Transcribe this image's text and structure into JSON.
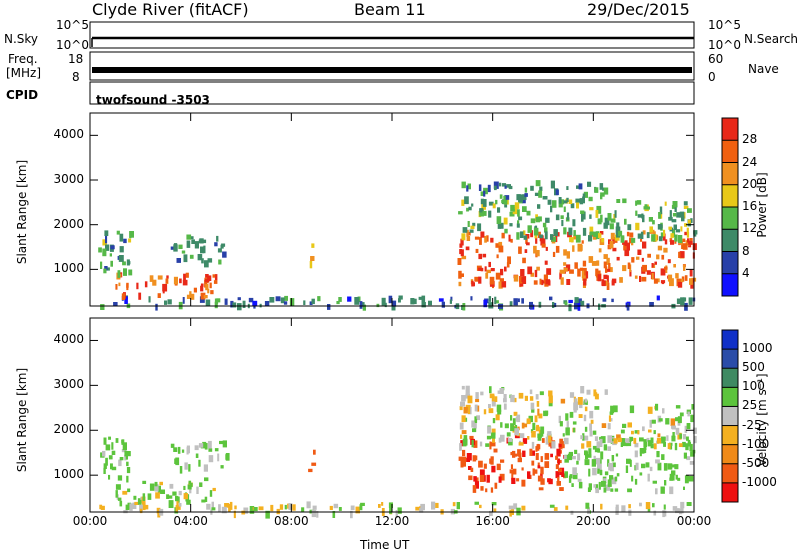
{
  "header": {
    "station": "Clyde River (fitACF)",
    "beam": "Beam 11",
    "date": "29/Dec/2015"
  },
  "noise_panel": {
    "left_label": "N.Sky",
    "right_label": "N.Search",
    "left_ticks": [
      "10^5",
      "10^0"
    ],
    "right_ticks": [
      "10^5",
      "10^0"
    ]
  },
  "freq_panel": {
    "left_label_1": "Freq.",
    "left_label_2": "[MHz]",
    "right_label": "Nave",
    "left_ticks": [
      "18",
      "8"
    ],
    "right_ticks": [
      "60",
      "0"
    ]
  },
  "cpid_panel": {
    "label": "CPID",
    "program": "twofsound -3503"
  },
  "colors": {
    "power": [
      "#1010ff",
      "#2840a8",
      "#3e8a68",
      "#56b848",
      "#e8c818",
      "#f09020",
      "#f06010",
      "#e82818"
    ],
    "velocity": [
      "#ee1010",
      "#f05a14",
      "#f08a18",
      "#f4b020",
      "#c0c0c0",
      "#5cc43c",
      "#3f8a62",
      "#2a4ca8",
      "#1030c8"
    ]
  },
  "chart_data": [
    {
      "type": "heatmap",
      "title": "",
      "xlabel": "Time UT",
      "ylabel": "Slant Range [km]",
      "xlim": [
        0,
        24
      ],
      "ylim": [
        180,
        4500
      ],
      "x_tick_labels": [
        "00:00",
        "04:00",
        "08:00",
        "12:00",
        "16:00",
        "20:00",
        "00:00"
      ],
      "y_tick_labels": [
        "1000",
        "2000",
        "3000",
        "4000"
      ],
      "y_ticks": [
        1000,
        2000,
        3000,
        4000
      ],
      "colorbar_label": "Power [dB]",
      "colorbar_ticks": [
        "4",
        "8",
        "12",
        "16",
        "20",
        "24",
        "28"
      ],
      "colorbar_range": [
        0,
        32
      ],
      "regions": [
        {
          "t0": 0.3,
          "t1": 24,
          "r0": 200,
          "r1": 420,
          "v0": 3,
          "v1": 14
        },
        {
          "t0": 1.0,
          "t1": 5.0,
          "r0": 420,
          "r1": 950,
          "v0": 20,
          "v1": 32
        },
        {
          "t0": 0.3,
          "t1": 1.6,
          "r0": 900,
          "r1": 1900,
          "v0": 6,
          "v1": 18
        },
        {
          "t0": 3.2,
          "t1": 5.4,
          "r0": 1200,
          "r1": 1800,
          "v0": 6,
          "v1": 14
        },
        {
          "t0": 8.6,
          "t1": 8.9,
          "r0": 1100,
          "r1": 1600,
          "v0": 14,
          "v1": 22
        },
        {
          "t0": 14.6,
          "t1": 24,
          "r0": 700,
          "r1": 1900,
          "v0": 20,
          "v1": 32
        },
        {
          "t0": 14.6,
          "t1": 24,
          "r0": 1700,
          "r1": 2600,
          "v0": 8,
          "v1": 18
        },
        {
          "t0": 14.6,
          "t1": 20.5,
          "r0": 2600,
          "r1": 3000,
          "v0": 6,
          "v1": 14
        }
      ]
    },
    {
      "type": "heatmap",
      "title": "",
      "xlabel": "Time UT",
      "ylabel": "Slant Range [km]",
      "xlim": [
        0,
        24
      ],
      "ylim": [
        180,
        4500
      ],
      "x_tick_labels": [
        "00:00",
        "04:00",
        "08:00",
        "12:00",
        "16:00",
        "20:00",
        "00:00"
      ],
      "y_tick_labels": [
        "1000",
        "2000",
        "3000",
        "4000"
      ],
      "y_ticks": [
        1000,
        2000,
        3000,
        4000
      ],
      "colorbar_label": "Velocity [m s⁻¹]",
      "colorbar_ticks": [
        "1000",
        "500",
        "100",
        "25",
        "-25",
        "-100",
        "-500",
        "-1000"
      ],
      "colorbar_range": [
        -1000,
        1000
      ],
      "regions": [
        {
          "t0": 0.3,
          "t1": 24,
          "r0": 200,
          "r1": 420,
          "v0": -20,
          "v1": 150
        },
        {
          "t0": 1.0,
          "t1": 5.0,
          "r0": 420,
          "r1": 950,
          "v0": -30,
          "v1": 300
        },
        {
          "t0": 0.3,
          "t1": 1.6,
          "r0": 900,
          "r1": 1900,
          "v0": 50,
          "v1": 300
        },
        {
          "t0": 3.2,
          "t1": 5.4,
          "r0": 1200,
          "r1": 1800,
          "v0": 50,
          "v1": 250
        },
        {
          "t0": 8.6,
          "t1": 8.9,
          "r0": 1100,
          "r1": 1600,
          "v0": -300,
          "v1": -120
        },
        {
          "t0": 14.6,
          "t1": 18.8,
          "r0": 700,
          "r1": 1900,
          "v0": -600,
          "v1": -120
        },
        {
          "t0": 18.8,
          "t1": 24,
          "r0": 700,
          "r1": 1900,
          "v0": 30,
          "v1": 300
        },
        {
          "t0": 14.6,
          "t1": 24,
          "r0": 1700,
          "r1": 2600,
          "v0": -40,
          "v1": 200
        },
        {
          "t0": 14.6,
          "t1": 20.5,
          "r0": 2600,
          "r1": 3000,
          "v0": -30,
          "v1": 120
        }
      ]
    }
  ]
}
